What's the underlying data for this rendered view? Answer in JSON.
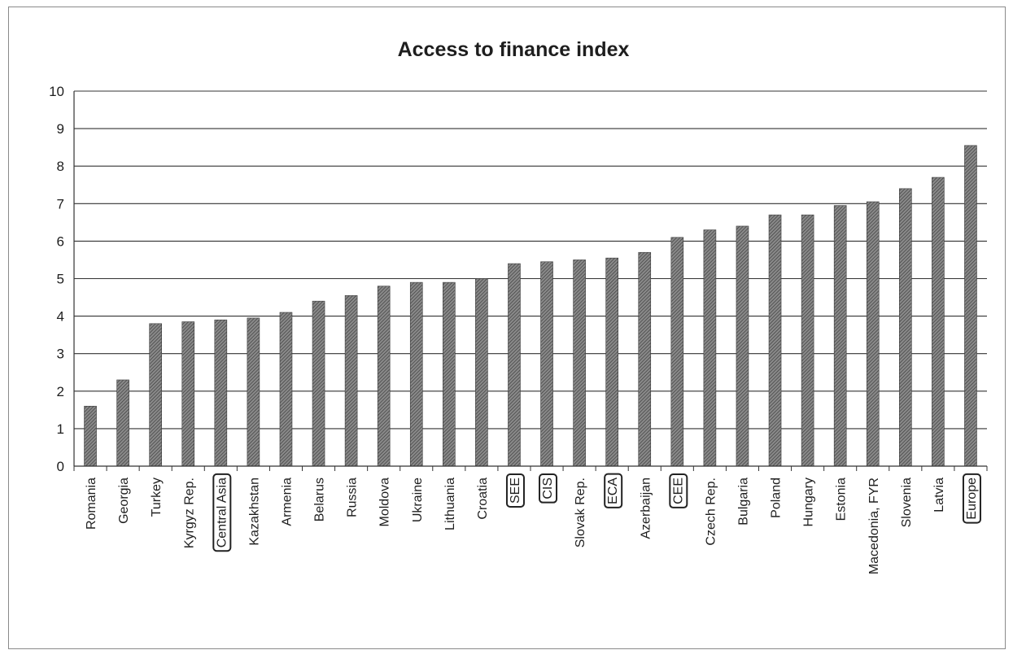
{
  "chart_data": {
    "type": "bar",
    "title": "Access to finance index",
    "xlabel": "",
    "ylabel": "",
    "ylim": [
      0,
      10
    ],
    "yticks": [
      "0",
      "1",
      "2",
      "3",
      "4",
      "5",
      "6",
      "7",
      "8",
      "9",
      "10"
    ],
    "grid": true,
    "legend": "none",
    "bar_color": "#6e6e6e",
    "categories": [
      "Romania",
      "Georgia",
      "Turkey",
      "Kyrgyz Rep.",
      "Central Asia",
      "Kazakhstan",
      "Armenia",
      "Belarus",
      "Russia",
      "Moldova",
      "Ukraine",
      "Lithuania",
      "Croatia",
      "SEE",
      "CIS",
      "Slovak Rep.",
      "ECA",
      "Azerbaijan",
      "CEE",
      "Czech Rep.",
      "Bulgaria",
      "Poland",
      "Hungary",
      "Estonia",
      "Macedonia, FYR",
      "Slovenia",
      "Latvia",
      "Europe"
    ],
    "values": [
      1.6,
      2.3,
      3.8,
      3.85,
      3.9,
      3.95,
      4.1,
      4.4,
      4.55,
      4.8,
      4.9,
      4.9,
      5.0,
      5.4,
      5.45,
      5.5,
      5.55,
      5.7,
      6.1,
      6.3,
      6.4,
      6.7,
      6.7,
      6.95,
      7.05,
      7.4,
      7.7,
      8.55
    ],
    "highlighted": [
      "Central Asia",
      "SEE",
      "CIS",
      "ECA",
      "CEE",
      "Europe"
    ]
  }
}
